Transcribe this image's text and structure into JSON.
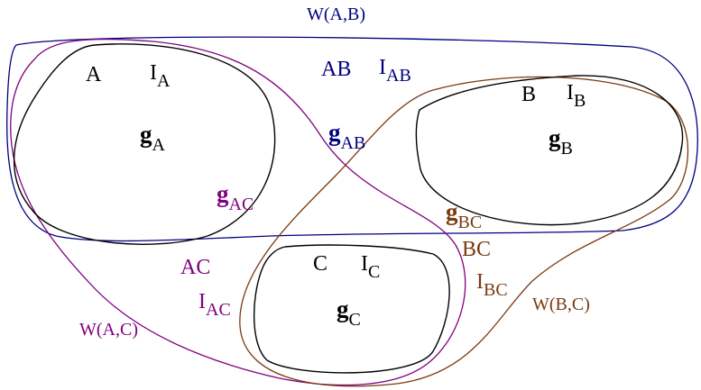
{
  "colors": {
    "black": "#000000",
    "ab": "#000080",
    "ac": "#800080",
    "bc": "#7a3a10"
  },
  "regions": {
    "a": {
      "name": "A",
      "i": "I",
      "i_sub": "A",
      "g": "g",
      "g_sub": "A"
    },
    "b": {
      "name": "B",
      "i": "I",
      "i_sub": "B",
      "g": "g",
      "g_sub": "B"
    },
    "c": {
      "name": "C",
      "i": "I",
      "i_sub": "C",
      "g": "g",
      "g_sub": "C"
    }
  },
  "ab": {
    "w": "W(A,B)",
    "name": "AB",
    "i": "I",
    "i_sub": "AB",
    "g": "g",
    "g_sub": "AB"
  },
  "ac": {
    "w": "W(A,C)",
    "name": "AC",
    "i": "I",
    "i_sub": "AC",
    "g": "g",
    "g_sub": "AC"
  },
  "bc": {
    "w": "W(B,C)",
    "name": "BC",
    "i": "I",
    "i_sub": "BC",
    "g": "g",
    "g_sub": "BC"
  }
}
